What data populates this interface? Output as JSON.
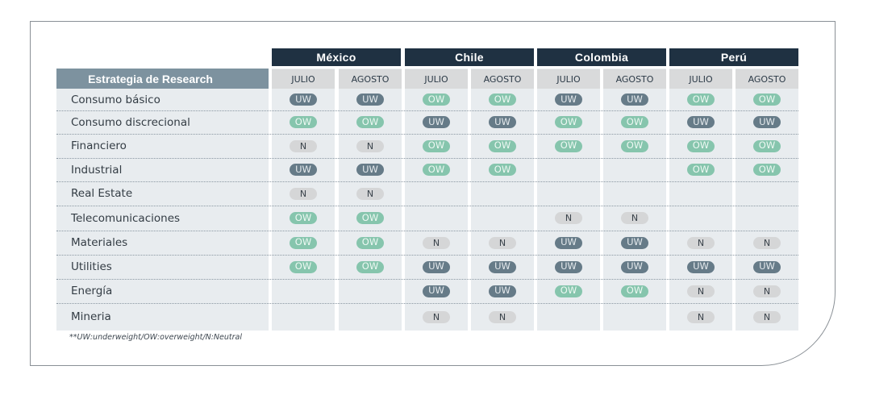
{
  "header_label": "Estrategia de Research",
  "countries": [
    "México",
    "Chile",
    "Colombia",
    "Perú"
  ],
  "months": [
    "JULIO",
    "AGOSTO"
  ],
  "rows": [
    {
      "sector": "Consumo básico",
      "ratings": [
        "UW",
        "UW",
        "OW",
        "OW",
        "UW",
        "UW",
        "OW",
        "OW"
      ]
    },
    {
      "sector": "Consumo discrecional",
      "ratings": [
        "OW",
        "OW",
        "UW",
        "UW",
        "OW",
        "OW",
        "UW",
        "UW"
      ]
    },
    {
      "sector": "Financiero",
      "ratings": [
        "N",
        "N",
        "OW",
        "OW",
        "OW",
        "OW",
        "OW",
        "OW"
      ]
    },
    {
      "sector": "Industrial",
      "ratings": [
        "UW",
        "UW",
        "OW",
        "OW",
        "",
        "",
        "OW",
        "OW"
      ]
    },
    {
      "sector": "Real Estate",
      "ratings": [
        "N",
        "N",
        "",
        "",
        "",
        "",
        "",
        ""
      ]
    },
    {
      "sector": "Telecomunicaciones",
      "ratings": [
        "OW",
        "OW",
        "",
        "",
        "N",
        "N",
        "",
        ""
      ]
    },
    {
      "sector": "Materiales",
      "ratings": [
        "OW",
        "OW",
        "N",
        "N",
        "UW",
        "UW",
        "N",
        "N"
      ]
    },
    {
      "sector": "Utilities",
      "ratings": [
        "OW",
        "OW",
        "UW",
        "UW",
        "UW",
        "UW",
        "UW",
        "UW"
      ]
    },
    {
      "sector": "Energía",
      "ratings": [
        "",
        "",
        "UW",
        "UW",
        "OW",
        "OW",
        "N",
        "N"
      ]
    },
    {
      "sector": "Mineria",
      "ratings": [
        "",
        "",
        "N",
        "N",
        "",
        "",
        "N",
        "N"
      ]
    }
  ],
  "footnote": "**UW:underweight/OW:overweight/N:Neutral"
}
